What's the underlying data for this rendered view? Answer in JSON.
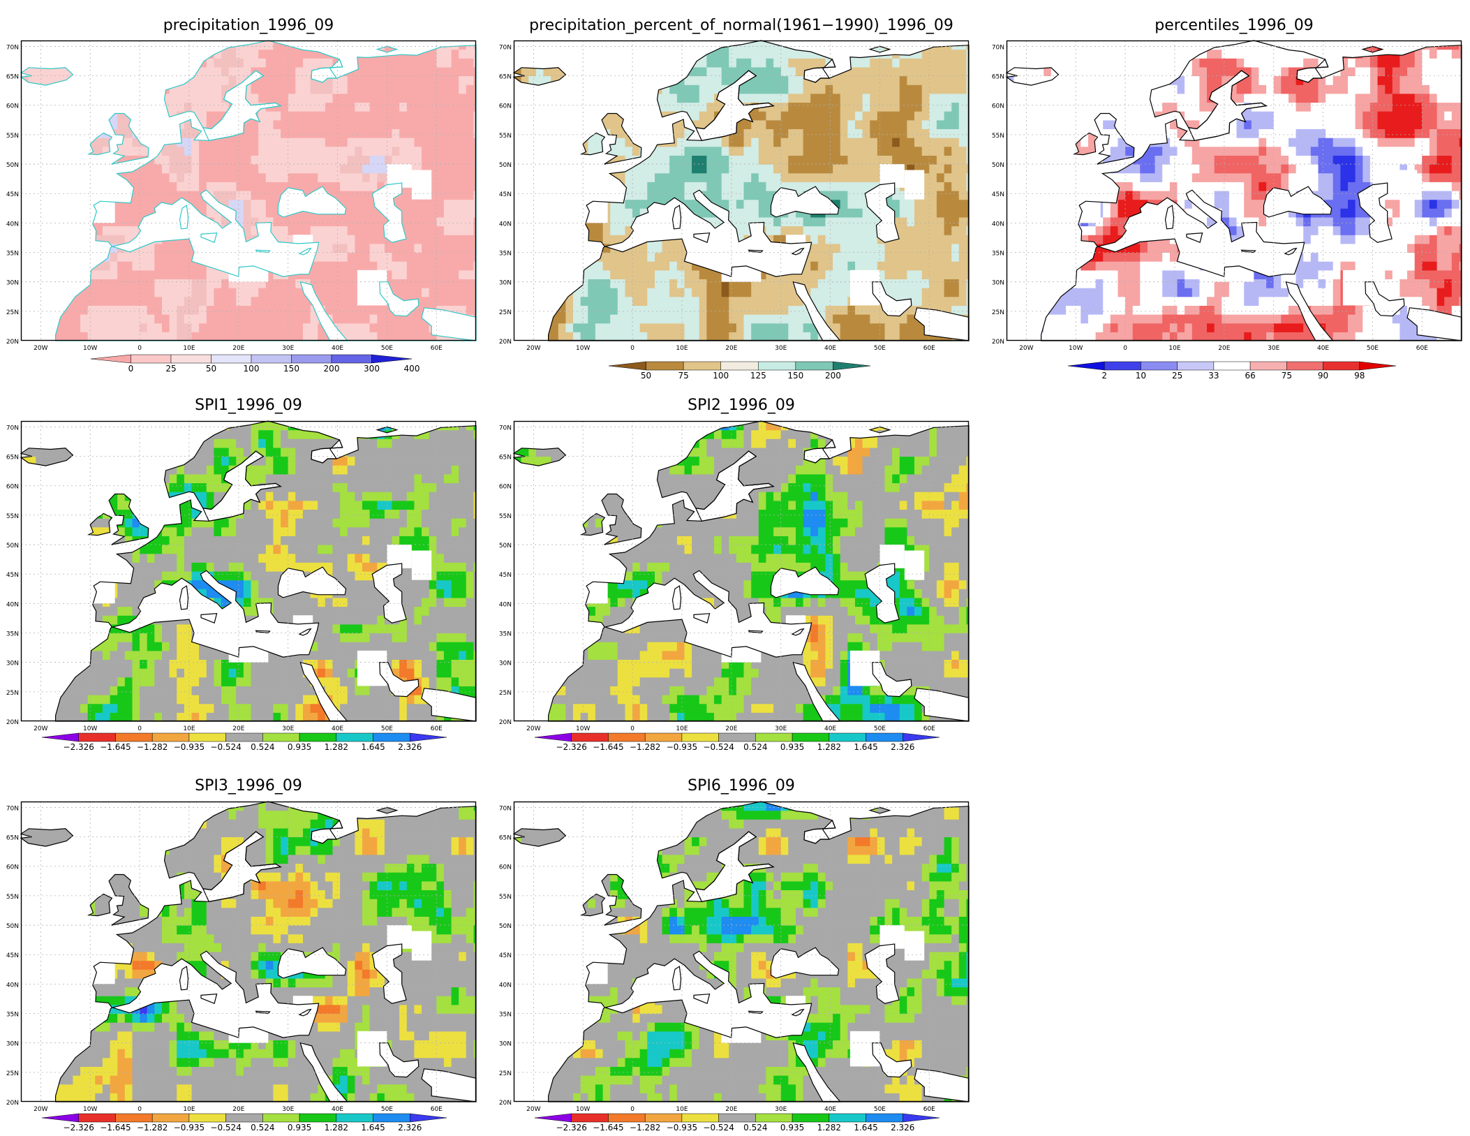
{
  "axes": {
    "lat_labels": [
      "70N",
      "65N",
      "60N",
      "55N",
      "50N",
      "45N",
      "40N",
      "35N",
      "30N",
      "25N",
      "20N"
    ],
    "lon_labels": [
      "20W",
      "10W",
      "0",
      "10E",
      "20E",
      "30E",
      "40E",
      "50E",
      "60E"
    ]
  },
  "panels": [
    {
      "id": "precipitation",
      "title": "precipitation_1996_09",
      "legend": "precip",
      "field_palette": [
        "#f8aaaa",
        "#fbd2d2",
        "#f3c0c0",
        "#d6d6f6",
        "#a8a8f0",
        "#7070e8"
      ],
      "coast_color": "#2ec8c8"
    },
    {
      "id": "percent_normal",
      "title": "precipitation_percent_of_normal(1961−1990)_1996_09",
      "legend": "percent",
      "field_palette": [
        "#8c5a1c",
        "#b98a3e",
        "#e0c48a",
        "#d2ece6",
        "#7fc8b6",
        "#1f7f6e"
      ],
      "coast_color": "#000000"
    },
    {
      "id": "percentiles",
      "title": "percentiles_1996_09",
      "legend": "perc",
      "field_palette": [
        "#2b32e8",
        "#6a6ef0",
        "#b6b8f6",
        "#ffffff",
        "#f7a4a4",
        "#f06464",
        "#e81c1c"
      ],
      "coast_color": "#000000"
    },
    {
      "id": "spi1",
      "title": "SPI1_1996_09",
      "legend": "spi",
      "coast_color": "#000000"
    },
    {
      "id": "spi2",
      "title": "SPI2_1996_09",
      "legend": "spi",
      "coast_color": "#000000"
    },
    {
      "id": "spi3",
      "title": "SPI3_1996_09",
      "legend": "spi",
      "coast_color": "#000000"
    },
    {
      "id": "spi6",
      "title": "SPI6_1996_09",
      "legend": "spi",
      "coast_color": "#000000"
    }
  ],
  "legends": {
    "precip": {
      "labels": [
        "0",
        "25",
        "50",
        "100",
        "150",
        "200",
        "300",
        "400"
      ],
      "colors": [
        "#f8a8a8",
        "#fbc8c8",
        "#f9dede",
        "#e4e4fa",
        "#c4c4f4",
        "#9a9aee",
        "#6464e6",
        "#2020d8"
      ]
    },
    "percent": {
      "labels": [
        "50",
        "75",
        "100",
        "125",
        "150",
        "200"
      ],
      "colors": [
        "#8c5a1c",
        "#b98a3e",
        "#e0c48a",
        "#f2ece0",
        "#c8ece4",
        "#7fc8b6",
        "#1f7f6e"
      ]
    },
    "perc": {
      "labels": [
        "2",
        "10",
        "25",
        "33",
        "66",
        "75",
        "90",
        "98"
      ],
      "colors": [
        "#1010e0",
        "#4040ea",
        "#8a8cf2",
        "#c8c8f8",
        "#ffffff",
        "#f7b0b0",
        "#f07070",
        "#e83030",
        "#e00000"
      ]
    },
    "spi": {
      "labels": [
        "−2.326",
        "−1.645",
        "−1.282",
        "−0.935",
        "−0.524",
        "0.524",
        "0.935",
        "1.282",
        "1.645",
        "2.326"
      ],
      "colors": [
        "#8c00e6",
        "#e8302a",
        "#f27a2a",
        "#f2a640",
        "#ece040",
        "#a8a8a8",
        "#a4e040",
        "#18c818",
        "#18c8c8",
        "#1e8cf0",
        "#3a3af0"
      ]
    }
  },
  "colors": {
    "ocean": "#ffffff",
    "land_missing": "#ffffff",
    "grid": "#b0b0b0",
    "frame": "#000000"
  }
}
